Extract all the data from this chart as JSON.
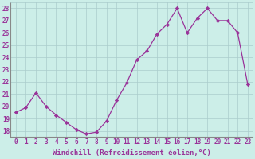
{
  "x": [
    0,
    1,
    2,
    3,
    4,
    5,
    6,
    7,
    8,
    9,
    10,
    11,
    12,
    13,
    14,
    15,
    16,
    17,
    18,
    19,
    20,
    21,
    22,
    23
  ],
  "y": [
    19.5,
    19.9,
    21.1,
    20.0,
    19.3,
    18.7,
    18.1,
    17.75,
    17.9,
    18.8,
    20.5,
    21.9,
    23.8,
    24.5,
    25.9,
    26.7,
    28.0,
    26.0,
    27.2,
    28.0,
    27.0,
    27.0,
    26.0,
    21.8
  ],
  "line_color": "#993399",
  "marker": "D",
  "marker_size": 2.2,
  "bg_color": "#cceee8",
  "grid_color": "#aacccc",
  "xlabel": "Windchill (Refroidissement éolien,°C)",
  "xlim": [
    -0.5,
    23.5
  ],
  "ylim": [
    17.5,
    28.5
  ],
  "yticks": [
    18,
    19,
    20,
    21,
    22,
    23,
    24,
    25,
    26,
    27,
    28
  ],
  "xticks": [
    0,
    1,
    2,
    3,
    4,
    5,
    6,
    7,
    8,
    9,
    10,
    11,
    12,
    13,
    14,
    15,
    16,
    17,
    18,
    19,
    20,
    21,
    22,
    23
  ],
  "tick_fontsize": 5.5,
  "xlabel_fontsize": 6.5
}
